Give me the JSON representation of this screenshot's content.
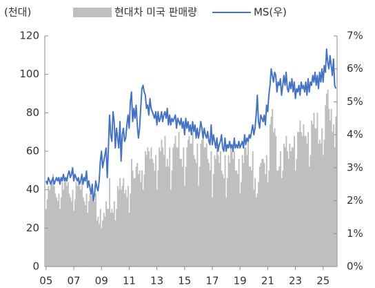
{
  "chart_data": {
    "type": "bar_line",
    "unit_label": "(천대)",
    "categories": [
      "05",
      null,
      null,
      null,
      null,
      null,
      null,
      null,
      null,
      null,
      null,
      null,
      null,
      null,
      null,
      null,
      null,
      null,
      null,
      null,
      null,
      null,
      null,
      null,
      "07",
      null,
      null,
      null,
      null,
      null,
      null,
      null,
      null,
      null,
      null,
      null,
      null,
      null,
      null,
      null,
      null,
      null,
      null,
      null,
      null,
      null,
      null,
      null,
      "09",
      null,
      null,
      null,
      null,
      null,
      null,
      null,
      null,
      null,
      null,
      null,
      null,
      null,
      null,
      null,
      null,
      null,
      null,
      null,
      null,
      null,
      null,
      null,
      "11",
      null,
      null,
      null,
      null,
      null,
      null,
      null,
      null,
      null,
      null,
      null,
      null,
      null,
      null,
      null,
      null,
      null,
      null,
      null,
      null,
      null,
      null,
      null,
      "13",
      null,
      null,
      null,
      null,
      null,
      null,
      null,
      null,
      null,
      null,
      null,
      null,
      null,
      null,
      null,
      null,
      null,
      null,
      null,
      null,
      null,
      null,
      null,
      "15",
      null,
      null,
      null,
      null,
      null,
      null,
      null,
      null,
      null,
      null,
      null,
      null,
      null,
      null,
      null,
      null,
      null,
      null,
      null,
      null,
      null,
      null,
      null,
      "17",
      null,
      null,
      null,
      null,
      null,
      null,
      null,
      null,
      null,
      null,
      null,
      null,
      null,
      null,
      null,
      null,
      null,
      null,
      null,
      null,
      null,
      null,
      null,
      "19",
      null,
      null,
      null,
      null,
      null,
      null,
      null,
      null,
      null,
      null,
      null,
      null,
      null,
      null,
      null,
      null,
      null,
      null,
      null,
      null,
      null,
      null,
      null,
      "21",
      null,
      null,
      null,
      null,
      null,
      null,
      null,
      null,
      null,
      null,
      null,
      null,
      null,
      null,
      null,
      null,
      null,
      null,
      null,
      null,
      null,
      null,
      null,
      "23",
      null,
      null,
      null,
      null,
      null,
      null,
      null,
      null,
      null,
      null,
      null,
      null,
      null,
      null,
      null,
      null,
      null,
      null,
      null,
      null,
      null,
      null,
      null,
      "25",
      null,
      null,
      null,
      null,
      null,
      null,
      null,
      null,
      null,
      null,
      null
    ],
    "series": [
      {
        "name": "현대차 미국 판매량",
        "color": "#bfbfbf",
        "type": "bar",
        "values": [
          30,
          35,
          42,
          40,
          45,
          44,
          48,
          42,
          38,
          36,
          34,
          38,
          30,
          36,
          44,
          40,
          44,
          46,
          42,
          44,
          38,
          36,
          34,
          40,
          29,
          35,
          44,
          42,
          46,
          42,
          40,
          44,
          36,
          34,
          32,
          38,
          28,
          34,
          38,
          37,
          40,
          36,
          34,
          38,
          24,
          26,
          22,
          30,
          20,
          24,
          28,
          26,
          34,
          30,
          30,
          46,
          28,
          30,
          28,
          34,
          24,
          30,
          42,
          40,
          46,
          40,
          42,
          46,
          38,
          40,
          36,
          42,
          28,
          38,
          56,
          50,
          46,
          46,
          52,
          54,
          48,
          50,
          44,
          50,
          40,
          48,
          60,
          58,
          62,
          60,
          56,
          62,
          56,
          54,
          50,
          58,
          40,
          50,
          62,
          60,
          66,
          62,
          58,
          68,
          52,
          56,
          52,
          62,
          40,
          50,
          62,
          64,
          68,
          62,
          62,
          70,
          56,
          56,
          52,
          62,
          42,
          52,
          62,
          66,
          68,
          64,
          64,
          70,
          58,
          56,
          54,
          64,
          42,
          52,
          64,
          66,
          68,
          62,
          62,
          64,
          56,
          54,
          50,
          60,
          36,
          48,
          58,
          56,
          62,
          58,
          54,
          60,
          50,
          48,
          46,
          58,
          36,
          46,
          58,
          54,
          62,
          60,
          56,
          60,
          50,
          50,
          48,
          56,
          38,
          44,
          58,
          54,
          62,
          62,
          58,
          66,
          52,
          52,
          50,
          60,
          40,
          46,
          36,
          38,
          44,
          52,
          54,
          56,
          56,
          54,
          48,
          58,
          44,
          50,
          74,
          78,
          82,
          70,
          72,
          68,
          50,
          50,
          52,
          60,
          46,
          50,
          64,
          62,
          68,
          60,
          56,
          64,
          60,
          62,
          62,
          68,
          50,
          56,
          70,
          70,
          76,
          70,
          68,
          74,
          68,
          68,
          64,
          70,
          52,
          58,
          76,
          74,
          80,
          72,
          72,
          80,
          64,
          66,
          64,
          72,
          58,
          66,
          84,
          90,
          92,
          82,
          76,
          82,
          70,
          74,
          62,
          78
        ]
      },
      {
        "name": "MS(우)",
        "color": "#4472c4",
        "type": "line",
        "axis": "y2",
        "values": [
          2.6,
          2.5,
          2.7,
          2.6,
          2.5,
          2.6,
          2.7,
          2.5,
          2.6,
          2.7,
          2.6,
          2.7,
          2.5,
          2.7,
          2.6,
          2.8,
          2.6,
          2.7,
          2.6,
          2.8,
          2.9,
          2.7,
          2.8,
          3.0,
          2.6,
          2.8,
          2.7,
          2.6,
          2.7,
          2.5,
          2.6,
          2.8,
          2.5,
          2.7,
          2.6,
          2.9,
          2.4,
          2.6,
          2.4,
          2.2,
          2.5,
          2.0,
          2.2,
          2.6,
          2.4,
          2.3,
          2.6,
          3.2,
          3.5,
          3.0,
          3.2,
          3.4,
          3.6,
          2.7,
          3.6,
          4.6,
          4.0,
          3.8,
          4.7,
          4.4,
          3.6,
          4.2,
          3.9,
          3.6,
          4.4,
          3.2,
          4.0,
          4.2,
          3.8,
          3.9,
          4.3,
          4.6,
          4.2,
          5.0,
          5.3,
          4.4,
          4.8,
          4.5,
          4.9,
          4.3,
          3.9,
          4.2,
          4.8,
          5.4,
          5.5,
          5.3,
          5.2,
          4.8,
          4.9,
          4.6,
          5.1,
          4.8,
          4.7,
          4.6,
          4.5,
          4.7,
          4.3,
          4.7,
          4.4,
          4.5,
          4.7,
          4.4,
          4.6,
          4.7,
          4.5,
          4.8,
          4.3,
          4.6,
          4.3,
          4.5,
          4.4,
          4.5,
          4.6,
          4.2,
          4.5,
          4.4,
          4.3,
          4.5,
          4.2,
          4.4,
          4.0,
          4.5,
          4.2,
          4.4,
          4.1,
          4.3,
          4.0,
          4.4,
          4.1,
          4.3,
          3.9,
          4.2,
          3.9,
          4.1,
          4.4,
          4.2,
          3.9,
          4.2,
          4.0,
          3.9,
          4.1,
          3.8,
          3.7,
          4.3,
          3.7,
          4.0,
          3.8,
          3.6,
          3.9,
          3.5,
          3.7,
          3.8,
          4.0,
          3.6,
          3.5,
          3.9,
          3.5,
          3.7,
          3.6,
          3.8,
          3.6,
          3.7,
          3.5,
          3.9,
          3.6,
          3.7,
          3.6,
          3.8,
          3.6,
          3.7,
          3.8,
          3.6,
          4.0,
          3.7,
          3.9,
          3.8,
          4.0,
          3.9,
          4.1,
          4.3,
          4.0,
          4.2,
          4.6,
          5.2,
          4.4,
          4.2,
          4.6,
          4.5,
          4.4,
          4.6,
          4.3,
          4.9,
          4.7,
          5.2,
          5.5,
          6.0,
          5.8,
          5.6,
          5.9,
          5.8,
          5.3,
          5.6,
          5.5,
          5.7,
          5.2,
          5.5,
          5.8,
          5.5,
          5.9,
          5.4,
          5.3,
          5.6,
          5.4,
          5.7,
          5.3,
          5.6,
          5.1,
          5.4,
          5.3,
          5.5,
          5.2,
          5.6,
          5.4,
          5.5,
          5.3,
          5.6,
          5.2,
          5.7,
          5.3,
          5.6,
          5.5,
          5.8,
          5.6,
          5.9,
          5.5,
          5.8,
          5.4,
          5.9,
          5.6,
          6.0,
          5.6,
          6.1,
          5.9,
          6.6,
          6.2,
          6.0,
          6.4,
          6.1,
          5.8,
          6.3,
          5.5,
          5.4
        ]
      }
    ],
    "ylim": [
      0,
      120
    ],
    "yticks": [
      0,
      20,
      40,
      60,
      80,
      100,
      120
    ],
    "y2lim": [
      0,
      7
    ],
    "y2ticks": [
      {
        "value": 0,
        "label": "0%"
      },
      {
        "value": 1,
        "label": "1%"
      },
      {
        "value": 2,
        "label": "2%"
      },
      {
        "value": 3,
        "label": "3%"
      },
      {
        "value": 4,
        "label": "4%"
      },
      {
        "value": 5,
        "label": "5%"
      },
      {
        "value": 6,
        "label": "6%"
      },
      {
        "value": 7,
        "label": "7%"
      }
    ],
    "legend": "top"
  }
}
